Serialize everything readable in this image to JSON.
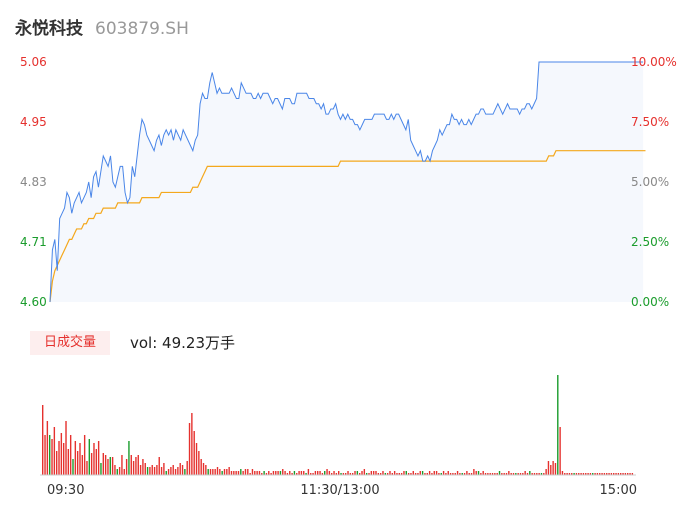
{
  "header": {
    "name": "永悦科技",
    "code": "603879.SH"
  },
  "volume_panel": {
    "tag": "日成交量",
    "vol_text": "vol: 49.23万手"
  },
  "colors": {
    "up": "#e5312e",
    "down": "#1a9c2c",
    "price_line": "#4a86e8",
    "avg_line": "#f4a81d",
    "fill": "#f5f8fd"
  },
  "chart_data": [
    {
      "type": "line",
      "title": "",
      "x_tick_labels": [
        "09:30",
        "11:30/13:00",
        "15:00"
      ],
      "y_left_ticks": [
        "5.06",
        "4.95",
        "4.83",
        "4.71",
        "4.60"
      ],
      "y_right_ticks": [
        "10.00%",
        "7.50%",
        "5.00%",
        "2.50%",
        "0.00%"
      ],
      "ylim": [
        4.6,
        5.06
      ],
      "x_points": 241,
      "series": [
        {
          "key": "price",
          "values": [
            4.6,
            4.7,
            4.72,
            4.66,
            4.76,
            4.77,
            4.78,
            4.81,
            4.8,
            4.77,
            4.79,
            4.8,
            4.81,
            4.79,
            4.8,
            4.81,
            4.83,
            4.8,
            4.84,
            4.85,
            4.82,
            4.85,
            4.88,
            4.87,
            4.86,
            4.88,
            4.83,
            4.82,
            4.84,
            4.86,
            4.86,
            4.81,
            4.79,
            4.8,
            4.86,
            4.84,
            4.88,
            4.92,
            4.95,
            4.94,
            4.92,
            4.91,
            4.9,
            4.89,
            4.91,
            4.92,
            4.9,
            4.92,
            4.93,
            4.92,
            4.93,
            4.91,
            4.93,
            4.92,
            4.91,
            4.93,
            4.92,
            4.91,
            4.9,
            4.89,
            4.91,
            4.92,
            4.98,
            5.0,
            4.99,
            4.99,
            5.02,
            5.04,
            5.02,
            5.0,
            5.01,
            5.0,
            5.0,
            5.0,
            5.0,
            5.01,
            5.0,
            4.99,
            4.99,
            5.02,
            5.01,
            5.0,
            5.0,
            5.0,
            4.99,
            4.99,
            5.0,
            4.99,
            5.0,
            5.0,
            5.0,
            4.99,
            4.98,
            4.99,
            4.99,
            4.98,
            4.97,
            4.99,
            4.99,
            4.99,
            4.98,
            4.98,
            5.0,
            5.0,
            5.0,
            5.0,
            5.0,
            4.99,
            4.99,
            4.99,
            4.98,
            4.98,
            4.97,
            4.98,
            4.96,
            4.96,
            4.97,
            4.97,
            4.98,
            4.96,
            4.95,
            4.96,
            4.95,
            4.96,
            4.95,
            4.95,
            4.94,
            4.94,
            4.93,
            4.94,
            4.95,
            4.95,
            4.95,
            4.95,
            4.96,
            4.96,
            4.96,
            4.96,
            4.96,
            4.95,
            4.95,
            4.96,
            4.95,
            4.96,
            4.96,
            4.95,
            4.94,
            4.93,
            4.95,
            4.91,
            4.9,
            4.89,
            4.88,
            4.89,
            4.87,
            4.87,
            4.88,
            4.87,
            4.89,
            4.9,
            4.91,
            4.93,
            4.92,
            4.93,
            4.94,
            4.94,
            4.96,
            4.95,
            4.95,
            4.94,
            4.95,
            4.94,
            4.94,
            4.95,
            4.94,
            4.95,
            4.96,
            4.96,
            4.97,
            4.97,
            4.96,
            4.96,
            4.96,
            4.96,
            4.97,
            4.98,
            4.97,
            4.96,
            4.97,
            4.98,
            4.97,
            4.97,
            4.97,
            4.97,
            4.96,
            4.97,
            4.97,
            4.98,
            4.98,
            4.97,
            4.98,
            4.99,
            5.06,
            5.06,
            5.06,
            5.06,
            5.06,
            5.06,
            5.06,
            5.06,
            5.06,
            5.06,
            5.06,
            5.06,
            5.06,
            5.06,
            5.06,
            5.06,
            5.06,
            5.06,
            5.06,
            5.06,
            5.06,
            5.06,
            5.06,
            5.06,
            5.06,
            5.06,
            5.06,
            5.06,
            5.06,
            5.06,
            5.06,
            5.06,
            5.06,
            5.06,
            5.06,
            5.06,
            5.06,
            5.06,
            5.06,
            5.06,
            5.06,
            5.06,
            5.06,
            5.06
          ]
        },
        {
          "key": "avg_price",
          "values": [
            4.6,
            4.64,
            4.66,
            4.67,
            4.68,
            4.69,
            4.7,
            4.71,
            4.72,
            4.72,
            4.73,
            4.74,
            4.74,
            4.74,
            4.75,
            4.75,
            4.76,
            4.76,
            4.76,
            4.77,
            4.77,
            4.77,
            4.78,
            4.78,
            4.78,
            4.78,
            4.78,
            4.78,
            4.79,
            4.79,
            4.79,
            4.79,
            4.79,
            4.79,
            4.79,
            4.79,
            4.79,
            4.79,
            4.8,
            4.8,
            4.8,
            4.8,
            4.8,
            4.8,
            4.8,
            4.8,
            4.81,
            4.81,
            4.81,
            4.81,
            4.81,
            4.81,
            4.81,
            4.81,
            4.81,
            4.81,
            4.81,
            4.81,
            4.81,
            4.82,
            4.82,
            4.82,
            4.83,
            4.84,
            4.85,
            4.86,
            4.86,
            4.86,
            4.86,
            4.86,
            4.86,
            4.86,
            4.86,
            4.86,
            4.86,
            4.86,
            4.86,
            4.86,
            4.86,
            4.86,
            4.86,
            4.86,
            4.86,
            4.86,
            4.86,
            4.86,
            4.86,
            4.86,
            4.86,
            4.86,
            4.86,
            4.86,
            4.86,
            4.86,
            4.86,
            4.86,
            4.86,
            4.86,
            4.86,
            4.86,
            4.86,
            4.86,
            4.86,
            4.86,
            4.86,
            4.86,
            4.86,
            4.86,
            4.86,
            4.86,
            4.86,
            4.86,
            4.86,
            4.86,
            4.86,
            4.86,
            4.86,
            4.86,
            4.86,
            4.86,
            4.87,
            4.87,
            4.87,
            4.87,
            4.87,
            4.87,
            4.87,
            4.87,
            4.87,
            4.87,
            4.87,
            4.87,
            4.87,
            4.87,
            4.87,
            4.87,
            4.87,
            4.87,
            4.87,
            4.87,
            4.87,
            4.87,
            4.87,
            4.87,
            4.87,
            4.87,
            4.87,
            4.87,
            4.87,
            4.87,
            4.87,
            4.87,
            4.87,
            4.87,
            4.87,
            4.87,
            4.87,
            4.87,
            4.87,
            4.87,
            4.87,
            4.87,
            4.87,
            4.87,
            4.87,
            4.87,
            4.87,
            4.87,
            4.87,
            4.87,
            4.87,
            4.87,
            4.87,
            4.87,
            4.87,
            4.87,
            4.87,
            4.87,
            4.87,
            4.87,
            4.87,
            4.87,
            4.87,
            4.87,
            4.87,
            4.87,
            4.87,
            4.87,
            4.87,
            4.87,
            4.87,
            4.87,
            4.87,
            4.87,
            4.87,
            4.87,
            4.87,
            4.87,
            4.87,
            4.87,
            4.87,
            4.87,
            4.87,
            4.87,
            4.87,
            4.87,
            4.88,
            4.88,
            4.88,
            4.89,
            4.89,
            4.89,
            4.89,
            4.89,
            4.89,
            4.89,
            4.89,
            4.89,
            4.89,
            4.89,
            4.89,
            4.89,
            4.89,
            4.89,
            4.89,
            4.89,
            4.89,
            4.89,
            4.89,
            4.89,
            4.89,
            4.89,
            4.89,
            4.89,
            4.89,
            4.89,
            4.89,
            4.89,
            4.89,
            4.89,
            4.89,
            4.89,
            4.89,
            4.89,
            4.89,
            4.89,
            4.89
          ]
        }
      ]
    },
    {
      "type": "bar",
      "title": "",
      "unit": "",
      "values": [
        35,
        20,
        27,
        20,
        18,
        24,
        12,
        17,
        21,
        16,
        27,
        13,
        20,
        8,
        17,
        12,
        16,
        10,
        20,
        7,
        18,
        11,
        16,
        13,
        17,
        6,
        11,
        10,
        8,
        9,
        9,
        5,
        3,
        4,
        10,
        3,
        8,
        17,
        10,
        7,
        9,
        10,
        5,
        8,
        6,
        4,
        4,
        5,
        4,
        5,
        9,
        4,
        6,
        2,
        3,
        4,
        5,
        3,
        4,
        6,
        5,
        3,
        7,
        26,
        31,
        22,
        16,
        12,
        8,
        6,
        5,
        3,
        3,
        3,
        3,
        4,
        3,
        2,
        3,
        3,
        4,
        2,
        2,
        2,
        2,
        3,
        2,
        3,
        3,
        1,
        3,
        2,
        2,
        2,
        1,
        2,
        1,
        2,
        1,
        2,
        2,
        2,
        2,
        3,
        2,
        1,
        2,
        1,
        2,
        1,
        2,
        2,
        2,
        1,
        3,
        1,
        1,
        2,
        2,
        2,
        1,
        2,
        3,
        2,
        1,
        2,
        1,
        2,
        1,
        1,
        1,
        2,
        1,
        1,
        2,
        2,
        1,
        2,
        3,
        1,
        1,
        2,
        2,
        2,
        1,
        1,
        2,
        1,
        1,
        2,
        1,
        2,
        1,
        1,
        1,
        2,
        2,
        1,
        1,
        2,
        1,
        1,
        2,
        2,
        1,
        1,
        2,
        1,
        2,
        2,
        1,
        1,
        2,
        1,
        2,
        1,
        1,
        1,
        2,
        1,
        1,
        1,
        2,
        1,
        1,
        3,
        2,
        2,
        1,
        2,
        1,
        1,
        1,
        1,
        1,
        1,
        2,
        1,
        1,
        1,
        2,
        1,
        1,
        1,
        1,
        1,
        1,
        2,
        1,
        2,
        1,
        1,
        1,
        1,
        1,
        1,
        3,
        7,
        5,
        7,
        6,
        50,
        24,
        2,
        1,
        1,
        1,
        1,
        1,
        1,
        1,
        1,
        1,
        1,
        1,
        1,
        1,
        1,
        1,
        1,
        1,
        1,
        1,
        1,
        1,
        1,
        1,
        1,
        1,
        1,
        1,
        1,
        1,
        1
      ],
      "down_indices": [
        3,
        13,
        20,
        25,
        29,
        32,
        37,
        45,
        53,
        61,
        71,
        77,
        85,
        95,
        102,
        108,
        113,
        121,
        128,
        135,
        139,
        147,
        156,
        163,
        171,
        180,
        187,
        196,
        203,
        209,
        214,
        221,
        228,
        236
      ]
    }
  ]
}
